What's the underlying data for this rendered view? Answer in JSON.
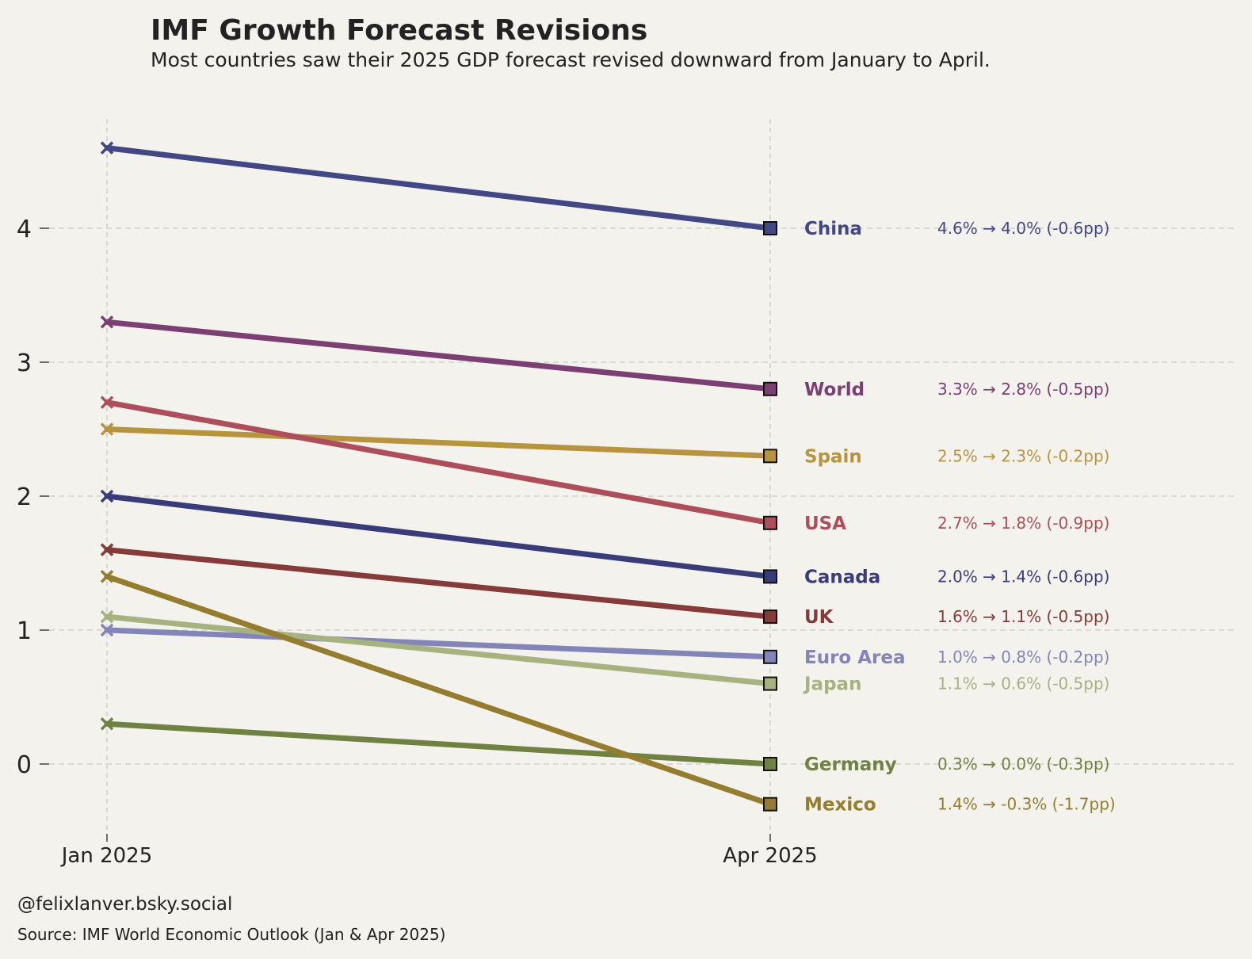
{
  "chart_data": {
    "type": "line",
    "title": "IMF Growth Forecast Revisions",
    "subtitle": "Most countries saw their 2025 GDP forecast revised downward from January to April.",
    "categories": [
      "Jan 2025",
      "Apr 2025"
    ],
    "y_ticks": [
      "0",
      "1",
      "2",
      "3",
      "4"
    ],
    "ylim": [
      -0.6,
      4.85
    ],
    "grid": true,
    "series": [
      {
        "name": "China",
        "values": [
          4.6,
          4.0
        ],
        "color": "#434784",
        "annotation": "4.6% → 4.0% (-0.6pp)"
      },
      {
        "name": "World",
        "values": [
          3.3,
          2.8
        ],
        "color": "#7b3f73",
        "annotation": "3.3% → 2.8% (-0.5pp)"
      },
      {
        "name": "Spain",
        "values": [
          2.5,
          2.3
        ],
        "color": "#b8943f",
        "annotation": "2.5% → 2.3% (-0.2pp)"
      },
      {
        "name": "USA",
        "values": [
          2.7,
          1.8
        ],
        "color": "#ad4f5a",
        "annotation": "2.7% → 1.8% (-0.9pp)"
      },
      {
        "name": "Canada",
        "values": [
          2.0,
          1.4
        ],
        "color": "#3a3c79",
        "annotation": "2.0% → 1.4% (-0.6pp)"
      },
      {
        "name": "UK",
        "values": [
          1.6,
          1.1
        ],
        "color": "#843b3a",
        "annotation": "1.6% → 1.1% (-0.5pp)"
      },
      {
        "name": "Euro Area",
        "values": [
          1.0,
          0.8
        ],
        "color": "#8384b8",
        "annotation": "1.0% → 0.8% (-0.2pp)"
      },
      {
        "name": "Japan",
        "values": [
          1.1,
          0.6
        ],
        "color": "#a7b281",
        "annotation": "1.1% → 0.6% (-0.5pp)"
      },
      {
        "name": "Germany",
        "values": [
          0.3,
          0.0
        ],
        "color": "#6f8241",
        "annotation": "0.3% → 0.0% (-0.3pp)"
      },
      {
        "name": "Mexico",
        "values": [
          1.4,
          -0.3
        ],
        "color": "#957d2f",
        "annotation": "1.4% → -0.3% (-1.7pp)"
      }
    ]
  },
  "footer": {
    "credit": "@felixlanver.bsky.social",
    "source": "Source: IMF World Economic Outlook (Jan & Apr 2025)"
  }
}
